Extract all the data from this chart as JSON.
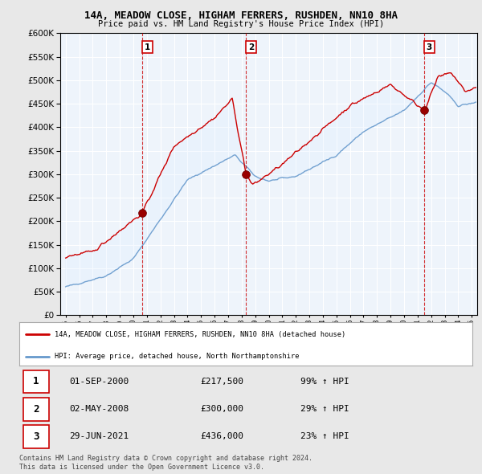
{
  "title": "14A, MEADOW CLOSE, HIGHAM FERRERS, RUSHDEN, NN10 8HA",
  "subtitle": "Price paid vs. HM Land Registry's House Price Index (HPI)",
  "ylim": [
    0,
    600000
  ],
  "yticks": [
    0,
    50000,
    100000,
    150000,
    200000,
    250000,
    300000,
    350000,
    400000,
    450000,
    500000,
    550000,
    600000
  ],
  "xlim_start": 1994.6,
  "xlim_end": 2025.4,
  "sale_dates": [
    2000.667,
    2008.333,
    2021.5
  ],
  "sale_prices": [
    217500,
    300000,
    436000
  ],
  "sale_labels": [
    "1",
    "2",
    "3"
  ],
  "sale_date_strs": [
    "01-SEP-2000",
    "02-MAY-2008",
    "29-JUN-2021"
  ],
  "sale_price_strs": [
    "£217,500",
    "£300,000",
    "£436,000"
  ],
  "sale_hpi_strs": [
    "99% ↑ HPI",
    "29% ↑ HPI",
    "23% ↑ HPI"
  ],
  "red_color": "#cc0000",
  "blue_color": "#6699cc",
  "fill_color": "#ddeeff",
  "legend_label_red": "14A, MEADOW CLOSE, HIGHAM FERRERS, RUSHDEN, NN10 8HA (detached house)",
  "legend_label_blue": "HPI: Average price, detached house, North Northamptonshire",
  "footer": "Contains HM Land Registry data © Crown copyright and database right 2024.\nThis data is licensed under the Open Government Licence v3.0.",
  "bg_color": "#e8e8e8",
  "plot_bg_color": "#eef4fb",
  "grid_color": "#ffffff"
}
